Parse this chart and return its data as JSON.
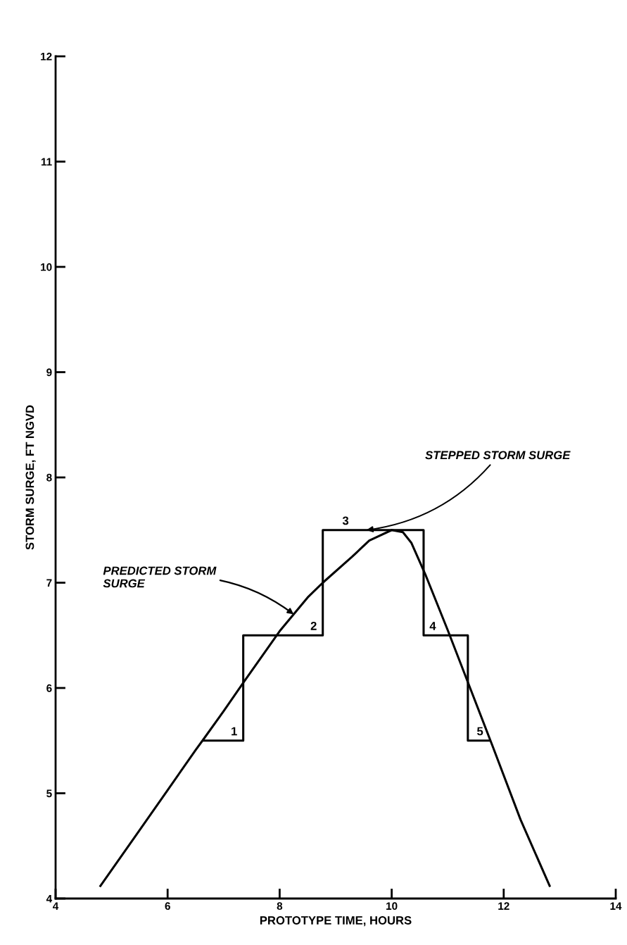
{
  "chart_data": {
    "type": "line",
    "xlabel": "PROTOTYPE TIME, HOURS",
    "ylabel": "STORM SURGE, FT NGVD",
    "xlim": [
      4,
      14
    ],
    "xticks": [
      4,
      6,
      8,
      10,
      12,
      14
    ],
    "ylim": [
      4,
      12
    ],
    "yticks": [
      4,
      5,
      6,
      7,
      8,
      9,
      10,
      11,
      12
    ],
    "grid": false,
    "series": [
      {
        "color": "#000000",
        "x": [
          4.8,
          5.5,
          6.0,
          6.5,
          6.65,
          7.0,
          7.35,
          8.0,
          8.5,
          8.77,
          9.3,
          9.6,
          10.0,
          10.2,
          10.35,
          10.5,
          10.6,
          11.0,
          11.4,
          11.8,
          12.3,
          12.82
        ],
        "values": [
          4.12,
          4.65,
          5.03,
          5.41,
          5.52,
          5.78,
          6.05,
          6.54,
          6.86,
          7.0,
          7.25,
          7.4,
          7.5,
          7.48,
          7.38,
          7.2,
          7.08,
          6.55,
          6.0,
          5.45,
          4.75,
          4.12
        ]
      },
      {
        "color": "#000000",
        "x": [
          6.65,
          7.35,
          7.35,
          8.77,
          8.77,
          10.57,
          10.57,
          11.36,
          11.36,
          11.74
        ],
        "values": [
          5.5,
          5.5,
          6.5,
          6.5,
          7.5,
          7.5,
          6.5,
          6.5,
          5.5,
          5.5
        ]
      }
    ],
    "annotations": [
      {
        "text": "STEPPED STORM SURGE",
        "x": 9.55,
        "y": 7.5
      },
      {
        "text": "PREDICTED STORM\nSURGE",
        "x": 8.25,
        "y": 6.7
      },
      {
        "text": "1",
        "x": 7.35,
        "y": 5.5
      },
      {
        "text": "2",
        "x": 8.77,
        "y": 6.5
      },
      {
        "text": "3",
        "x": 8.77,
        "y": 7.5
      },
      {
        "text": "4",
        "x": 10.57,
        "y": 6.5
      },
      {
        "text": "5",
        "x": 11.74,
        "y": 5.5
      }
    ]
  }
}
